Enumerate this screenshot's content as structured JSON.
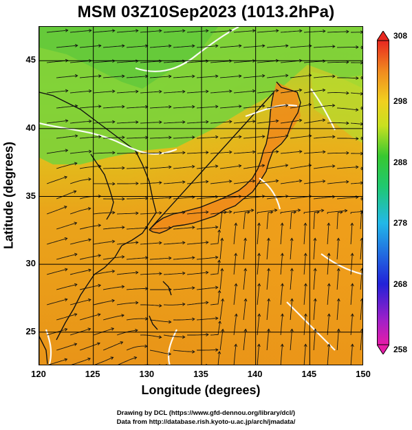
{
  "title": "MSM 03Z10Sep2023 (1013.2hPa)",
  "x_axis": {
    "label": "Longitude (degrees)",
    "range": [
      120,
      150
    ],
    "ticks": [
      "120",
      "125",
      "130",
      "135",
      "140",
      "145",
      "150"
    ]
  },
  "y_axis": {
    "label": "Latitude  (degrees)",
    "range": [
      22.5,
      47.5
    ],
    "ticks": [
      "25",
      "30",
      "35",
      "40",
      "45"
    ]
  },
  "colorbar": {
    "range": [
      258,
      308
    ],
    "ticks": [
      "258",
      "268",
      "278",
      "288",
      "298",
      "308"
    ]
  },
  "footer": {
    "line1": "Drawing by DCL (https://www.gfd-dennou.org/library/dcl/)",
    "line2": "Data from http://database.rish.kyoto-u.ac.jp/arch/jmadata/"
  }
}
